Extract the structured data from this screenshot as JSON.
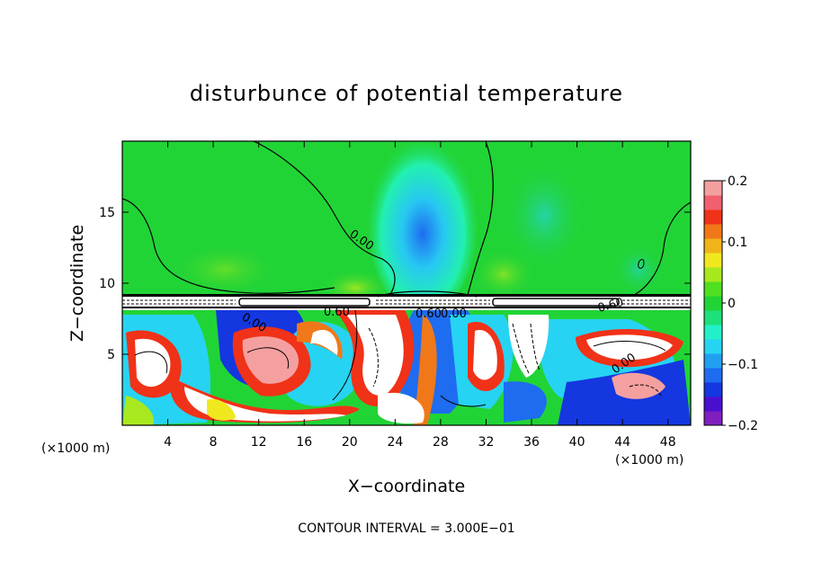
{
  "chart_data": {
    "type": "heatmap",
    "title": "disturbunce of potential temperature",
    "xlabel": "X−coordinate",
    "ylabel": "Z−coordinate",
    "x_unit_left": "(×1000 m)",
    "x_unit_right": "(×1000 m)",
    "xlim": [
      0,
      50
    ],
    "ylim": [
      0,
      20
    ],
    "x_ticks": [
      4,
      8,
      12,
      16,
      20,
      24,
      28,
      32,
      36,
      40,
      44,
      48
    ],
    "y_ticks": [
      5,
      10,
      15
    ],
    "colorbar": {
      "ticks": [
        "0.2",
        "0.1",
        "0",
        "−0.1",
        "−0.2"
      ],
      "vmin": -0.2,
      "vmax": 0.2,
      "colors": [
        "#7f1fbf",
        "#4b0fd0",
        "#1437e0",
        "#1e6cf0",
        "#21a0f2",
        "#27d3f2",
        "#22f0c8",
        "#1ee07a",
        "#21d436",
        "#4fe022",
        "#a8e81f",
        "#f0e81f",
        "#f0b41a",
        "#f07818",
        "#f03218",
        "#f0606e",
        "#f5a0a0"
      ]
    },
    "contour_labels": [
      "0.00",
      "0.60",
      "0.60",
      "0.00",
      "0.60",
      "0.00",
      "0.00"
    ],
    "contour_interval_text": "CONTOUR INTERVAL = 3.000E−01",
    "grid": false
  }
}
